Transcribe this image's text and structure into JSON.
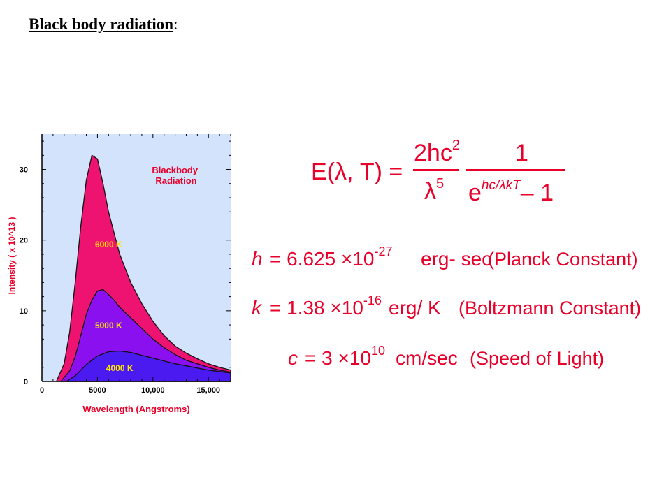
{
  "page": {
    "title": "Black body radiation",
    "title_suffix": ":"
  },
  "chart_data": {
    "type": "area",
    "title": "Blackbody Radiation",
    "xlabel": "Wavelength (Angstroms)",
    "ylabel": "Intensity ( x 10^13 )",
    "xlim": [
      0,
      17000
    ],
    "ylim": [
      0,
      35
    ],
    "x_ticks": [
      {
        "value": 0,
        "label": "0"
      },
      {
        "value": 5000,
        "label": "5000"
      },
      {
        "value": 10000,
        "label": "10,000"
      },
      {
        "value": 15000,
        "label": "15,000"
      }
    ],
    "y_ticks": [
      {
        "value": 0,
        "label": "0"
      },
      {
        "value": 10,
        "label": "10"
      },
      {
        "value": 20,
        "label": "20"
      },
      {
        "value": 30,
        "label": "30"
      }
    ],
    "series": [
      {
        "name": "6000 K",
        "color": "#ee1370",
        "x": [
          1300,
          2000,
          2500,
          3000,
          3500,
          4000,
          4500,
          5000,
          5500,
          6000,
          7000,
          8000,
          9000,
          10000,
          11000,
          12000,
          13000,
          14000,
          15000,
          16000,
          17000
        ],
        "values": [
          0,
          2.5,
          7,
          14,
          22,
          28.5,
          32,
          31.5,
          28,
          24,
          18,
          14,
          11,
          8.5,
          6.5,
          5,
          4,
          3.2,
          2.5,
          2,
          1.6
        ]
      },
      {
        "name": "5000 K",
        "color": "#8a10f0",
        "x": [
          1700,
          2500,
          3000,
          3500,
          4000,
          4500,
          5000,
          5500,
          6000,
          6500,
          7000,
          8000,
          9000,
          10000,
          11000,
          12000,
          13000,
          14000,
          15000,
          16000,
          17000
        ],
        "values": [
          0,
          1.5,
          3.5,
          6.5,
          9.5,
          11.5,
          12.8,
          13,
          12.3,
          11.5,
          10.5,
          9,
          7.5,
          6,
          4.8,
          3.8,
          3,
          2.5,
          2,
          1.6,
          1.3
        ]
      },
      {
        "name": "4000 K",
        "color": "#4a1af0",
        "x": [
          2200,
          3000,
          3500,
          4000,
          5000,
          6000,
          7000,
          8000,
          9000,
          10000,
          11000,
          12000,
          13000,
          14000,
          15000,
          16000,
          17000
        ],
        "values": [
          0,
          0.8,
          1.6,
          2.4,
          3.6,
          4.2,
          4.3,
          4.1,
          3.7,
          3.3,
          2.9,
          2.5,
          2.2,
          1.9,
          1.6,
          1.4,
          1.2
        ]
      }
    ],
    "grid": false,
    "background_color": "#d4e3fc",
    "label_color": "#e8002a",
    "series_label_color": "#ffe600"
  },
  "formulas": {
    "planck_law": {
      "lhs": "E(λ, T) =",
      "numerator1": "2hc",
      "numerator1_exp": "2",
      "denominator1": "λ",
      "denominator1_exp": "5",
      "numerator2": "1",
      "denominator2_base": "e",
      "denominator2_exp": "hc/λkT",
      "denominator2_tail": "– 1"
    },
    "constants": [
      {
        "symbol": "h",
        "mantissa": "= 6.625 ×10",
        "exponent": "-27",
        "unit": "erg- sec",
        "description": "(Planck Constant)"
      },
      {
        "symbol": "k",
        "mantissa": "= 1.38 ×10",
        "exponent": "-16",
        "unit": "erg/ K",
        "description": "(Boltzmann Constant)"
      },
      {
        "symbol": "c",
        "mantissa": "= 3 ×10",
        "exponent": "10",
        "unit": "cm/sec",
        "description": "(Speed of Light)"
      }
    ]
  }
}
